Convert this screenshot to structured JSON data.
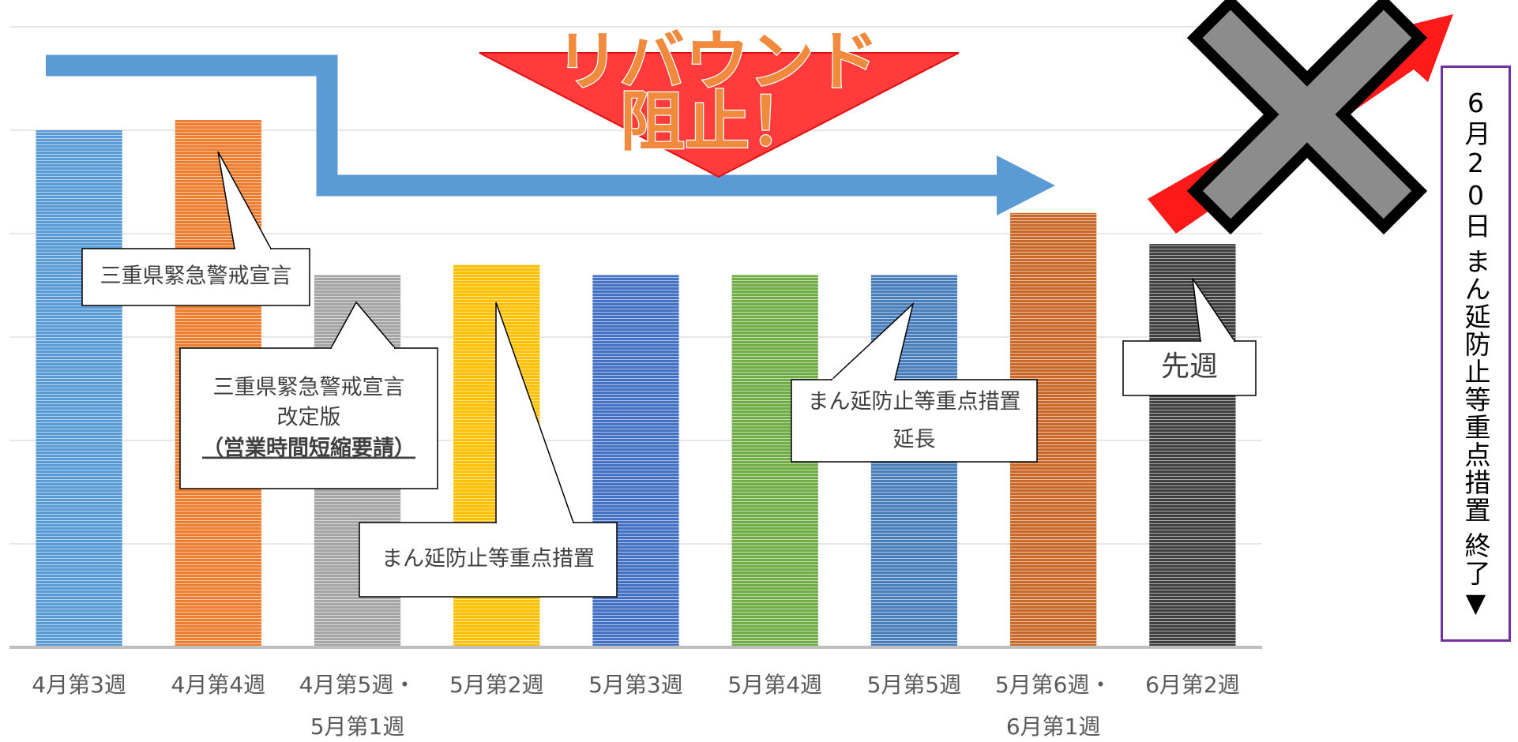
{
  "chart_data": {
    "type": "bar",
    "title": [
      "リバウンド",
      "阻止！"
    ],
    "categories": [
      [
        "4月第3週"
      ],
      [
        "4月第4週"
      ],
      [
        "4月第5週・",
        "5月第1週"
      ],
      [
        "5月第2週"
      ],
      [
        "5月第3週"
      ],
      [
        "5月第4週"
      ],
      [
        "5月第5週"
      ],
      [
        "5月第6週・",
        "6月第1週"
      ],
      [
        "6月第2週"
      ]
    ],
    "values": [
      5.0,
      5.1,
      3.6,
      3.7,
      3.6,
      3.6,
      3.6,
      4.2,
      3.9
    ],
    "colors": [
      "#5b9bd5",
      "#ed7d31",
      "#a5a5a5",
      "#ffc000",
      "#4472c4",
      "#70ad47",
      "#4a7ebb",
      "#c8692a",
      "#404040"
    ],
    "ylim": [
      0,
      6
    ],
    "yticks": [
      0,
      1,
      2,
      3,
      4,
      5,
      6
    ],
    "grid": true,
    "callouts": [
      {
        "lines": [
          "三重県緊急警戒宣言"
        ]
      },
      {
        "lines": [
          "三重県緊急警戒宣言",
          "改定版",
          "（営業時間短縮要請）"
        ]
      },
      {
        "lines": [
          "まん延防止等重点措置"
        ]
      },
      {
        "lines": [
          "まん延防止等重点措置",
          "延長"
        ]
      },
      {
        "lines": [
          "先週"
        ]
      }
    ],
    "side_note": {
      "date": "6月20日",
      "text": "まん延防止等重点措置",
      "end": "終了▼"
    }
  }
}
